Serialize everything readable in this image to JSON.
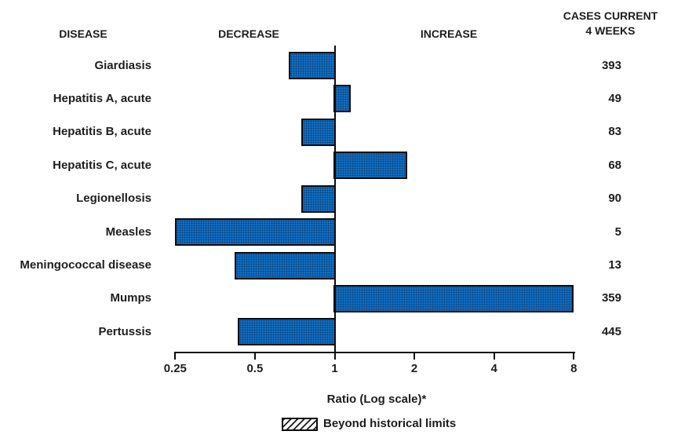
{
  "header": {
    "disease": "DISEASE",
    "decrease": "DECREASE",
    "increase": "INCREASE",
    "cases_line1": "CASES CURRENT",
    "cases_line2": "4 WEEKS"
  },
  "chart_data": {
    "type": "bar",
    "orientation": "horizontal",
    "scale": "log2",
    "xlabel": "Ratio (Log scale)*",
    "xlim": [
      0.25,
      8
    ],
    "baseline": 1,
    "grid": false,
    "axis_ticks": [
      "0.25",
      "0.5",
      "1",
      "2",
      "4",
      "8"
    ],
    "legend": {
      "label": "Beyond historical limits",
      "style": "diagonal-hatch",
      "position": "bottom"
    },
    "rows": [
      {
        "disease": "Giardiasis",
        "ratio": 0.67,
        "cases": "393",
        "beyond_limits": false
      },
      {
        "disease": "Hepatitis A, acute",
        "ratio": 1.15,
        "cases": "49",
        "beyond_limits": false
      },
      {
        "disease": "Hepatitis B, acute",
        "ratio": 0.75,
        "cases": "83",
        "beyond_limits": false
      },
      {
        "disease": "Hepatitis C, acute",
        "ratio": 1.88,
        "cases": "68",
        "beyond_limits": false
      },
      {
        "disease": "Legionellosis",
        "ratio": 0.75,
        "cases": "90",
        "beyond_limits": false
      },
      {
        "disease": "Measles",
        "ratio": 0.25,
        "cases": "5",
        "beyond_limits": false
      },
      {
        "disease": "Meningococcal disease",
        "ratio": 0.42,
        "cases": "13",
        "beyond_limits": false
      },
      {
        "disease": "Mumps",
        "ratio": 8.0,
        "cases": "359",
        "beyond_limits": false
      },
      {
        "disease": "Pertussis",
        "ratio": 0.43,
        "cases": "445",
        "beyond_limits": false
      }
    ]
  },
  "colors": {
    "bar_fill": "#1470c4",
    "bar_dot": "#05437e",
    "bar_border": "#0b0b0b",
    "axis": "#0b0b0b",
    "text": "#1d1d1d",
    "background": "#ffffff"
  }
}
